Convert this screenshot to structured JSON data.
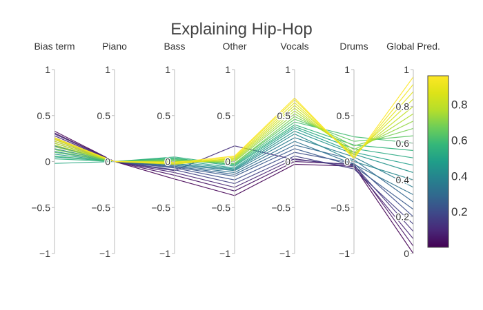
{
  "chart_data": {
    "type": "parallel_coordinates",
    "title": "Explaining Hip-Hop",
    "axes": [
      {
        "label": "Bias term",
        "range": [
          -1,
          1
        ],
        "ticks": [
          "1",
          "0.5",
          "0",
          "−0.5",
          "−1"
        ],
        "tick_values": [
          1,
          0.5,
          0,
          -0.5,
          -1
        ]
      },
      {
        "label": "Piano",
        "range": [
          -1,
          1
        ],
        "ticks": [
          "1",
          "0.5",
          "0",
          "−0.5",
          "−1"
        ],
        "tick_values": [
          1,
          0.5,
          0,
          -0.5,
          -1
        ]
      },
      {
        "label": "Bass",
        "range": [
          -1,
          1
        ],
        "ticks": [
          "1",
          "0.5",
          "0",
          "−0.5",
          "−1"
        ],
        "tick_values": [
          1,
          0.5,
          0,
          -0.5,
          -1
        ]
      },
      {
        "label": "Other",
        "range": [
          -1,
          1
        ],
        "ticks": [
          "1",
          "0.5",
          "0",
          "−0.5",
          "−1"
        ],
        "tick_values": [
          1,
          0.5,
          0,
          -0.5,
          -1
        ]
      },
      {
        "label": "Vocals",
        "range": [
          -1,
          1
        ],
        "ticks": [
          "1",
          "0.5",
          "0",
          "−0.5",
          "−1"
        ],
        "tick_values": [
          1,
          0.5,
          0,
          -0.5,
          -1
        ]
      },
      {
        "label": "Drums",
        "range": [
          -1,
          1
        ],
        "ticks": [
          "1",
          "0.5",
          "0",
          "−0.5",
          "−1"
        ],
        "tick_values": [
          1,
          0.5,
          0,
          -0.5,
          -1
        ]
      },
      {
        "label": "Global Pred.",
        "range": [
          0,
          1
        ],
        "ticks": [
          "1",
          "0.8",
          "0.6",
          "0.4",
          "0.2",
          "0"
        ],
        "tick_values": [
          1,
          0.8,
          0.6,
          0.4,
          0.2,
          0
        ]
      }
    ],
    "colorscale": "viridis",
    "colorbar": {
      "range": [
        0,
        0.96
      ],
      "ticks": [
        "0.8",
        "0.6",
        "0.4",
        "0.2"
      ],
      "tick_values": [
        0.8,
        0.6,
        0.4,
        0.2
      ]
    },
    "lines": [
      {
        "values": [
          0.33,
          0.0,
          -0.19,
          -0.37,
          -0.03,
          -0.05,
          0.0
        ],
        "color_value": 0.0
      },
      {
        "values": [
          0.31,
          0.0,
          -0.15,
          -0.32,
          0.0,
          -0.03,
          0.04
        ],
        "color_value": 0.04
      },
      {
        "values": [
          0.28,
          0.0,
          -0.12,
          -0.28,
          0.03,
          -0.06,
          0.08
        ],
        "color_value": 0.08
      },
      {
        "values": [
          0.3,
          0.0,
          -0.1,
          0.17,
          0.02,
          -0.04,
          0.12
        ],
        "color_value": 0.12
      },
      {
        "values": [
          0.26,
          0.0,
          -0.09,
          -0.24,
          0.06,
          -0.08,
          0.16
        ],
        "color_value": 0.16
      },
      {
        "values": [
          0.24,
          0.0,
          -0.07,
          -0.2,
          0.1,
          -0.02,
          0.2
        ],
        "color_value": 0.2
      },
      {
        "values": [
          0.22,
          0.0,
          -0.06,
          -0.16,
          0.14,
          -0.05,
          0.24
        ],
        "color_value": 0.24
      },
      {
        "values": [
          0.2,
          0.0,
          -0.05,
          -0.14,
          0.18,
          0.02,
          0.28
        ],
        "color_value": 0.28
      },
      {
        "values": [
          0.17,
          0.0,
          -0.04,
          -0.12,
          0.22,
          -0.03,
          0.32
        ],
        "color_value": 0.32
      },
      {
        "values": [
          0.14,
          0.0,
          -0.03,
          -0.1,
          0.26,
          0.05,
          0.36
        ],
        "color_value": 0.36
      },
      {
        "values": [
          0.11,
          0.0,
          -0.02,
          -0.09,
          0.3,
          0.0,
          0.4
        ],
        "color_value": 0.4
      },
      {
        "values": [
          0.08,
          0.0,
          0.0,
          -0.08,
          0.33,
          0.08,
          0.44
        ],
        "color_value": 0.44
      },
      {
        "values": [
          0.05,
          0.0,
          0.02,
          -0.07,
          0.36,
          0.1,
          0.48
        ],
        "color_value": 0.48
      },
      {
        "values": [
          -0.02,
          0.0,
          0.04,
          -0.05,
          0.38,
          0.14,
          0.52
        ],
        "color_value": 0.52
      },
      {
        "values": [
          0.03,
          0.0,
          0.05,
          -0.04,
          0.4,
          0.18,
          0.56
        ],
        "color_value": 0.56
      },
      {
        "values": [
          0.06,
          0.0,
          0.03,
          -0.03,
          0.43,
          0.27,
          0.6
        ],
        "color_value": 0.6
      },
      {
        "values": [
          0.1,
          0.0,
          0.02,
          -0.02,
          0.46,
          0.22,
          0.64
        ],
        "color_value": 0.64
      },
      {
        "values": [
          0.13,
          0.0,
          0.01,
          -0.02,
          0.49,
          0.17,
          0.68
        ],
        "color_value": 0.68
      },
      {
        "values": [
          0.16,
          0.0,
          0.0,
          0.0,
          0.52,
          0.13,
          0.72
        ],
        "color_value": 0.72
      },
      {
        "values": [
          0.18,
          0.0,
          -0.01,
          0.01,
          0.55,
          0.1,
          0.76
        ],
        "color_value": 0.76
      },
      {
        "values": [
          0.2,
          0.0,
          0.0,
          0.02,
          0.58,
          0.08,
          0.8
        ],
        "color_value": 0.8
      },
      {
        "values": [
          0.22,
          0.0,
          -0.02,
          0.03,
          0.61,
          0.07,
          0.84
        ],
        "color_value": 0.84
      },
      {
        "values": [
          0.24,
          0.0,
          -0.03,
          0.04,
          0.64,
          0.05,
          0.88
        ],
        "color_value": 0.88
      },
      {
        "values": [
          0.25,
          0.0,
          -0.02,
          0.05,
          0.67,
          0.04,
          0.92
        ],
        "color_value": 0.92
      },
      {
        "values": [
          0.26,
          0.0,
          -0.01,
          0.06,
          0.69,
          0.03,
          0.96
        ],
        "color_value": 0.96
      }
    ]
  }
}
